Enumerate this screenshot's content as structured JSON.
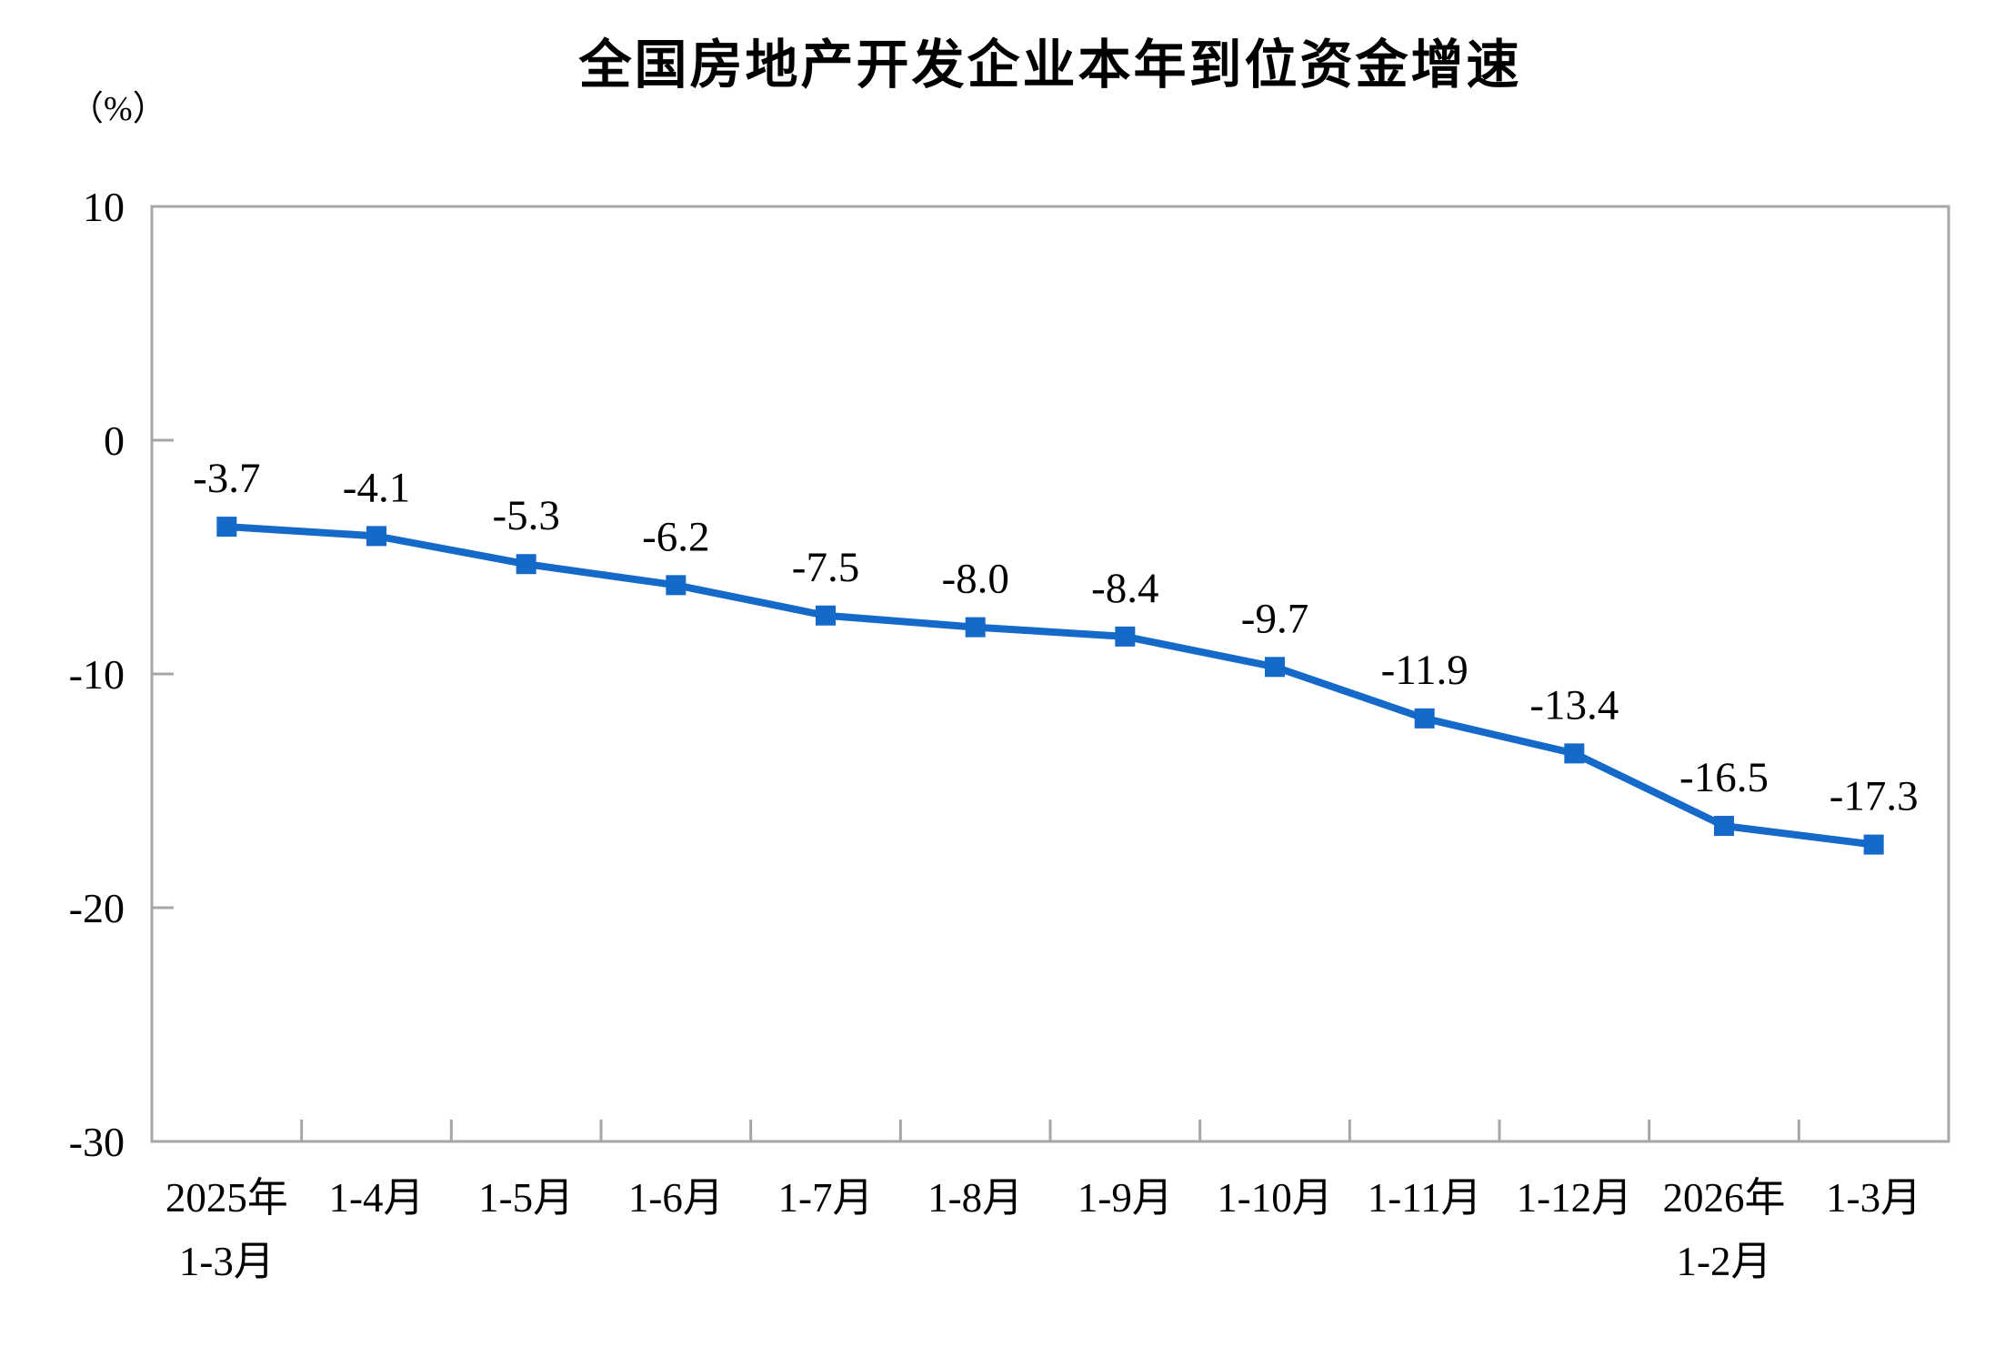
{
  "chart_data": {
    "type": "line",
    "title": "全国房地产开发企业本年到位资金增速",
    "unit_label": "（%）",
    "categories": [
      [
        "2025年",
        "1-3月"
      ],
      [
        "1-4月"
      ],
      [
        "1-5月"
      ],
      [
        "1-6月"
      ],
      [
        "1-7月"
      ],
      [
        "1-8月"
      ],
      [
        "1-9月"
      ],
      [
        "1-10月"
      ],
      [
        "1-11月"
      ],
      [
        "1-12月"
      ],
      [
        "2026年",
        "1-2月"
      ],
      [
        "1-3月"
      ]
    ],
    "values": [
      -3.7,
      -4.1,
      -5.3,
      -6.2,
      -7.5,
      -8.0,
      -8.4,
      -9.7,
      -11.9,
      -13.4,
      -16.5,
      -17.3
    ],
    "data_labels": [
      "-3.7",
      "-4.1",
      "-5.3",
      "-6.2",
      "-7.5",
      "-8.0",
      "-8.4",
      "-9.7",
      "-11.9",
      "-13.4",
      "-16.5",
      "-17.3"
    ],
    "ylim": [
      -30,
      10
    ],
    "y_ticks": [
      10,
      0,
      -10,
      -20,
      -30
    ],
    "legend": "none",
    "grid": "off",
    "marker": "square",
    "colors": {
      "series": "#1569C8",
      "axis": "#A6A6A6",
      "text": "#000000",
      "background": "#FFFFFF"
    }
  }
}
